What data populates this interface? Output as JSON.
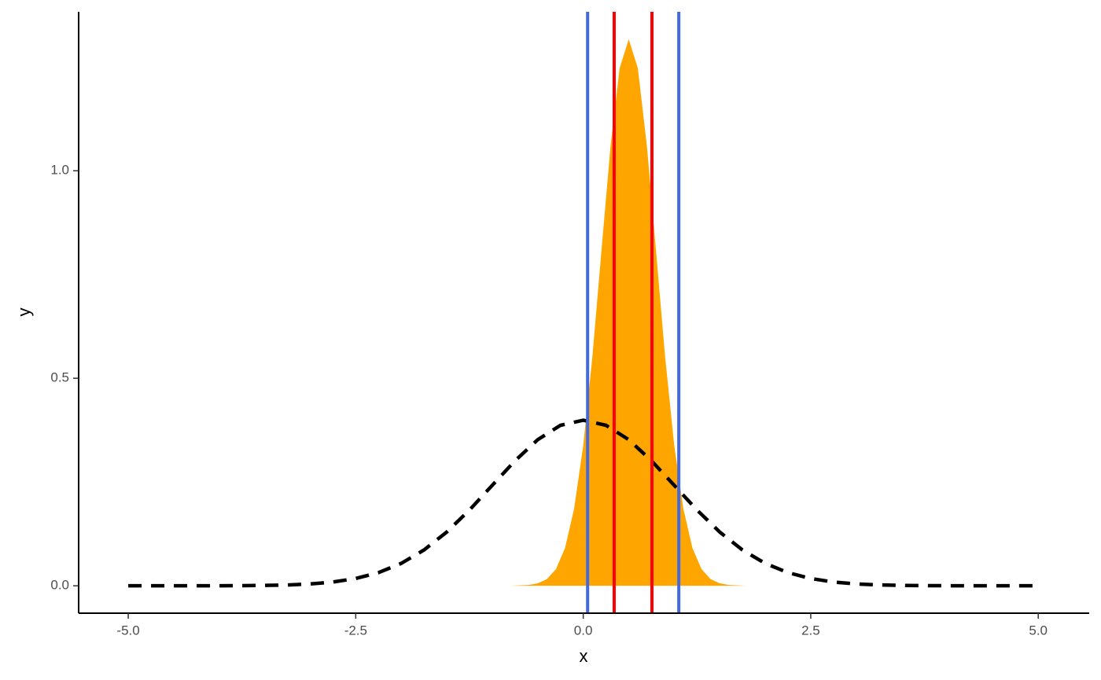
{
  "chart_data": {
    "type": "area",
    "x_label": "x",
    "y_label": "y",
    "xlim": [
      -5.545,
      5.56
    ],
    "ylim": [
      -0.066,
      1.383
    ],
    "xticks": [
      {
        "value": -5,
        "label": "-5.0"
      },
      {
        "value": -2.5,
        "label": "-2.5"
      },
      {
        "value": 0,
        "label": "0.0"
      },
      {
        "value": 2.5,
        "label": "2.5"
      },
      {
        "value": 5,
        "label": "5.0"
      }
    ],
    "yticks": [
      {
        "value": 0,
        "label": "0.0"
      },
      {
        "value": 0.5,
        "label": "0.5"
      },
      {
        "value": 1,
        "label": "1.0"
      }
    ],
    "series": [
      {
        "style": "area",
        "color": "#FFA500",
        "x": [
          -0.8,
          -0.7,
          -0.6,
          -0.5,
          -0.4,
          -0.3,
          -0.2,
          -0.1,
          0,
          0.1,
          0.2,
          0.3,
          0.4,
          0.5,
          0.6,
          0.7,
          0.8,
          0.9,
          1,
          1.1,
          1.2,
          1.3,
          1.4,
          1.5,
          1.6,
          1.7,
          1.8
        ],
        "values": [
          0.0,
          0.001,
          0.002,
          0.006,
          0.016,
          0.04,
          0.091,
          0.186,
          0.338,
          0.551,
          0.807,
          1.059,
          1.247,
          1.317,
          1.247,
          1.059,
          0.807,
          0.551,
          0.338,
          0.186,
          0.091,
          0.04,
          0.016,
          0.006,
          0.002,
          0.001,
          0.0
        ]
      },
      {
        "style": "dashed",
        "color": "#000000",
        "x": [
          -5,
          -4.75,
          -4.5,
          -4.25,
          -4,
          -3.75,
          -3.5,
          -3.25,
          -3,
          -2.75,
          -2.5,
          -2.25,
          -2,
          -1.75,
          -1.5,
          -1.25,
          -1,
          -0.75,
          -0.5,
          -0.25,
          0,
          0.25,
          0.5,
          0.75,
          1,
          1.25,
          1.5,
          1.75,
          2,
          2.25,
          2.5,
          2.75,
          3,
          3.25,
          3.5,
          3.75,
          4,
          4.25,
          4.5,
          4.75,
          5
        ],
        "values": [
          0.0,
          0.0,
          0.0,
          0.0,
          0.0001,
          0.0004,
          0.0009,
          0.002,
          0.0044,
          0.0091,
          0.0175,
          0.0317,
          0.054,
          0.0863,
          0.1295,
          0.1826,
          0.242,
          0.3011,
          0.3521,
          0.3867,
          0.3989,
          0.3867,
          0.3521,
          0.3011,
          0.242,
          0.1826,
          0.1295,
          0.0863,
          0.054,
          0.0317,
          0.0175,
          0.0091,
          0.0044,
          0.002,
          0.0009,
          0.0004,
          0.0001,
          0.0,
          0.0,
          0.0,
          0.0
        ]
      }
    ],
    "vlines": [
      {
        "x": 0.048,
        "color": "#4169E1"
      },
      {
        "x": 1.05,
        "color": "#4169E1"
      },
      {
        "x": 0.34,
        "color": "#FF0000"
      },
      {
        "x": 0.755,
        "color": "#FF0000"
      }
    ]
  }
}
